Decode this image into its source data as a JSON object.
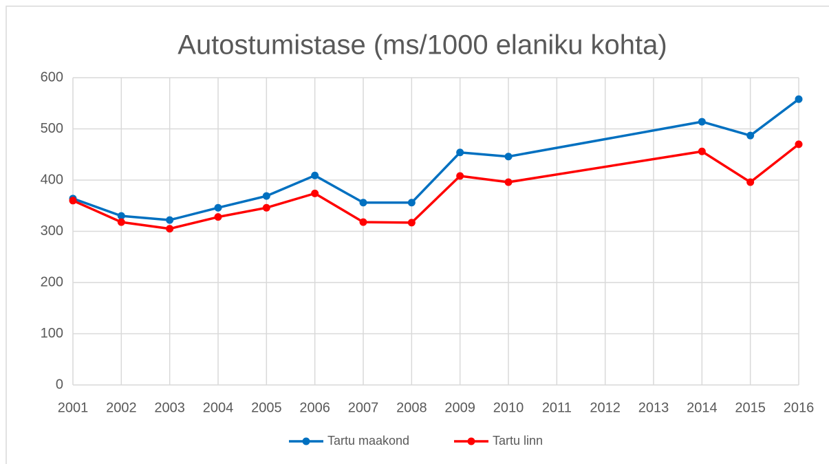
{
  "chart_data": {
    "type": "line",
    "title": "Autostumistase (ms/1000 elaniku kohta)",
    "x": [
      2001,
      2002,
      2003,
      2004,
      2005,
      2006,
      2007,
      2008,
      2009,
      2010,
      2014,
      2015,
      2016
    ],
    "series": [
      {
        "name": "Tartu maakond",
        "color": "#0070c0",
        "values": [
          364,
          330,
          322,
          346,
          369,
          409,
          356,
          356,
          454,
          446,
          514,
          487,
          558
        ]
      },
      {
        "name": "Tartu linn",
        "color": "#ff0000",
        "values": [
          360,
          318,
          305,
          328,
          346,
          374,
          318,
          317,
          408,
          396,
          456,
          396,
          470
        ]
      }
    ],
    "xlim": [
      2001,
      2016
    ],
    "xticks": [
      2001,
      2002,
      2003,
      2004,
      2005,
      2006,
      2007,
      2008,
      2009,
      2010,
      2011,
      2012,
      2013,
      2014,
      2015,
      2016
    ],
    "ylim": [
      0,
      600
    ],
    "yticks": [
      0,
      100,
      200,
      300,
      400,
      500,
      600
    ],
    "grid": true,
    "legend": "bottom"
  }
}
